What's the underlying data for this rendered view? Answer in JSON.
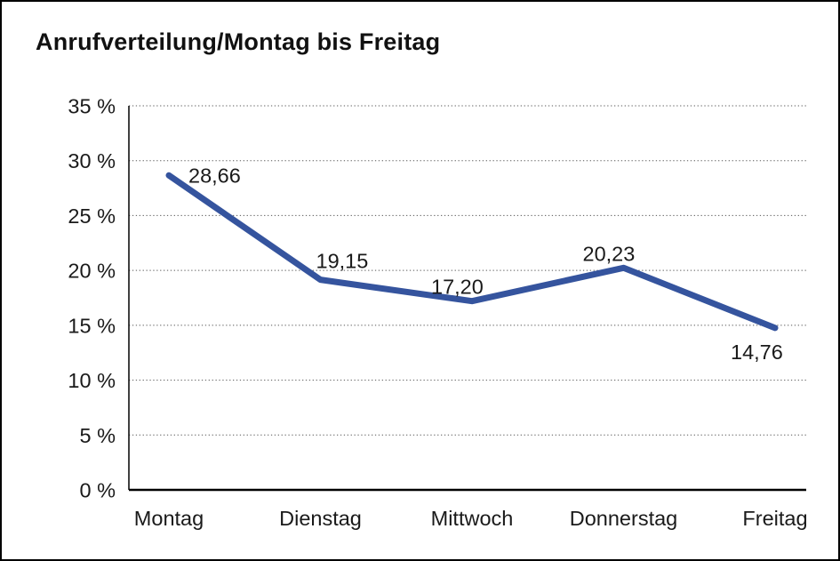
{
  "page": {
    "title": "Anrufverteilung/Montag bis Freitag"
  },
  "chart_data": {
    "type": "line",
    "title": "Anrufverteilung/Montag bis Freitag",
    "categories": [
      "Montag",
      "Dienstag",
      "Mittwoch",
      "Donnerstag",
      "Freitag"
    ],
    "series": [
      {
        "values": [
          28.66,
          19.15,
          17.2,
          20.23,
          14.76
        ],
        "value_labels": [
          "28,66",
          "19,15",
          "17,20",
          "20,23",
          "14,76"
        ],
        "color": "#35549E"
      }
    ],
    "xlabel": "",
    "ylabel": "",
    "ylim": [
      0,
      35
    ],
    "ytick_step": 5,
    "ytick_labels": [
      "0 %",
      "5 %",
      "10 %",
      "15 %",
      "20 %",
      "25 %",
      "30 %",
      "35 %"
    ],
    "grid": "horizontal-dotted",
    "legend": "none",
    "colors": {
      "axis": "#000000",
      "gridline": "#595959",
      "text": "#1a1a1a"
    }
  }
}
